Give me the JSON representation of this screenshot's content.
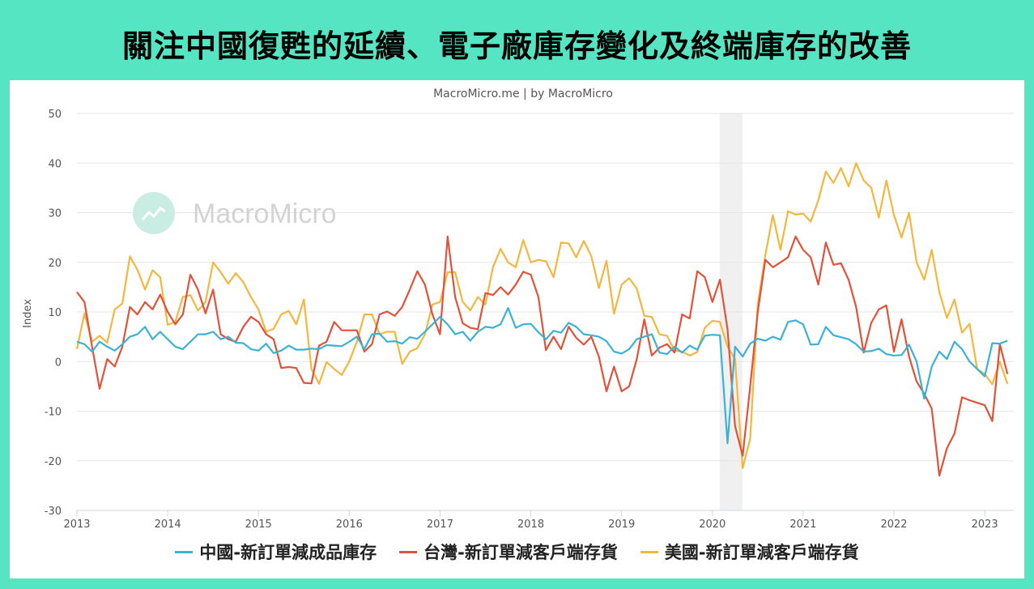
{
  "header": {
    "title": "關注中國復甦的延續、電子廠庫存變化及終端庫存的改善"
  },
  "watermark": {
    "text": "MacroMicro",
    "icon": "macromicro-logo-icon"
  },
  "colors": {
    "china": "#3cb1d6",
    "taiwan": "#e0533a",
    "usa": "#f3b73f",
    "recession": "#f0f0f0",
    "background": "#55e5c2"
  },
  "chart_data": {
    "type": "line",
    "title": "MacroMicro.me | by MacroMicro",
    "ylabel": "Index",
    "ylim": [
      -30,
      50
    ],
    "yticks": [
      -30,
      -20,
      -10,
      0,
      10,
      20,
      30,
      40,
      50
    ],
    "xlim": [
      2013.0,
      2023.32
    ],
    "xticks": [
      "2013",
      "2014",
      "2015",
      "2016",
      "2017",
      "2018",
      "2019",
      "2020",
      "2021",
      "2022",
      "2023"
    ],
    "grid": true,
    "shaded_periods": [
      {
        "start": 2020.08,
        "end": 2020.33
      }
    ],
    "x": {
      "start": 2013.0,
      "step_months": 1
    },
    "series": [
      {
        "key": "china",
        "name": "中國-新訂單減成品庫存",
        "values": [
          4,
          3.5,
          2,
          4,
          3,
          2.2,
          3.5,
          5,
          5.5,
          7,
          4.5,
          6,
          4.5,
          3,
          2.5,
          4,
          5.5,
          5.5,
          6,
          4.5,
          5,
          3.8,
          3.7,
          2.5,
          2.2,
          3.6,
          1.7,
          2.2,
          3.2,
          2.4,
          2.4,
          2.6,
          2.5,
          3.3,
          3.2,
          3.1,
          4,
          5,
          2.5,
          5.5,
          5.6,
          4,
          4.1,
          3.6,
          4.9,
          4.6,
          6,
          7.5,
          9,
          7.5,
          5.5,
          6,
          4.2,
          6,
          7,
          6.8,
          7.5,
          10.8,
          6.8,
          7.5,
          7.6,
          5.9,
          4.5,
          6.2,
          5.8,
          7.8,
          7,
          5.5,
          5.3,
          5,
          4.1,
          2,
          1.6,
          2.5,
          4.5,
          5,
          5.5,
          1.8,
          1.5,
          3,
          1.8,
          3.2,
          2.4,
          5.2,
          5.4,
          5.3,
          -16.5,
          3,
          1,
          3.6,
          4.6,
          4.2,
          5,
          4.4,
          8,
          8.3,
          7.5,
          3.4,
          3.5,
          7,
          5.3,
          4.9,
          4.5,
          3.5,
          2,
          2.1,
          2.6,
          1.5,
          1.2,
          1.3,
          3.4,
          0,
          -7.5,
          -1,
          2,
          0.5,
          4,
          2.5,
          0,
          -1.5,
          -3,
          3.7,
          3.6,
          4.2
        ]
      },
      {
        "key": "taiwan",
        "name": "台灣-新訂單減客戶端存貨",
        "values": [
          14,
          12,
          3,
          -5.5,
          0.5,
          -1,
          3,
          11,
          9.5,
          12,
          10.5,
          13.5,
          10,
          7.5,
          9.5,
          17.5,
          14.5,
          9.7,
          14.5,
          5.5,
          4.5,
          4,
          7,
          9,
          8,
          5.5,
          4.5,
          -1.3,
          -1.1,
          -1.3,
          -4.3,
          -4.4,
          3.2,
          4,
          8,
          6.3,
          6.3,
          6.3,
          2,
          3.5,
          9.5,
          10.1,
          9.2,
          11,
          14.5,
          18.2,
          15.5,
          9.5,
          5.5,
          25.2,
          13,
          7.7,
          6.8,
          6.5,
          13.8,
          13.4,
          15,
          13.5,
          15.5,
          18.1,
          17.5,
          13,
          2.3,
          5,
          2.5,
          7,
          4.8,
          3.4,
          5,
          1,
          -6,
          -1,
          -6,
          -5,
          0.5,
          8.5,
          1.2,
          2.8,
          3.5,
          1.8,
          9.5,
          8.7,
          18.2,
          17,
          12,
          16.5,
          6.5,
          -13,
          -19,
          -5,
          10,
          20.5,
          19,
          20,
          21,
          25.2,
          22.5,
          21,
          15.5,
          24,
          19.5,
          19.8,
          16.5,
          11,
          1.8,
          7.8,
          10.5,
          11.3,
          2,
          8.5,
          1,
          -4,
          -6.5,
          -9.5,
          -23,
          -17.5,
          -14.5,
          -7.2,
          -7.8,
          -8.3,
          -8.8,
          -12,
          3.5,
          -2.5
        ]
      },
      {
        "key": "usa",
        "name": "美國-新訂單減客戶端存貨",
        "values": [
          2.5,
          9.7,
          4,
          5.2,
          3.8,
          10.5,
          11.7,
          21.2,
          18.5,
          14.5,
          18.4,
          17,
          7.4,
          8,
          13,
          13.4,
          10.3,
          12,
          20,
          18,
          15.7,
          17.8,
          16,
          13,
          10.5,
          6,
          6.6,
          9.5,
          10.2,
          7.5,
          12.5,
          -1.5,
          -4.5,
          -0.1,
          -1.5,
          -2.7,
          0,
          4,
          9.5,
          9.5,
          5.5,
          6,
          6,
          -0.5,
          2,
          2.7,
          5.5,
          11.5,
          12,
          18,
          18,
          12,
          10.3,
          13,
          11.5,
          19,
          22.7,
          20,
          19,
          24.5,
          20,
          20.5,
          20.2,
          17,
          24,
          23.8,
          21,
          24.3,
          21.2,
          14.8,
          20.3,
          9.6,
          15.5,
          16.8,
          14.7,
          9.2,
          9,
          5.5,
          5.2,
          2.2,
          2,
          1.2,
          1.9,
          6.8,
          8.2,
          8,
          3,
          0.5,
          -21.5,
          -15.5,
          11.5,
          21.5,
          29.5,
          22.5,
          30.3,
          29.6,
          29.8,
          28.2,
          32.5,
          38.3,
          36,
          39,
          35.3,
          40,
          36.5,
          35,
          29,
          36.5,
          29.5,
          25,
          30,
          20,
          16.5,
          22.5,
          14,
          8.8,
          12.5,
          5.8,
          7.6,
          -1.5,
          -2.5,
          -4.6,
          0,
          -4.5
        ]
      }
    ]
  }
}
